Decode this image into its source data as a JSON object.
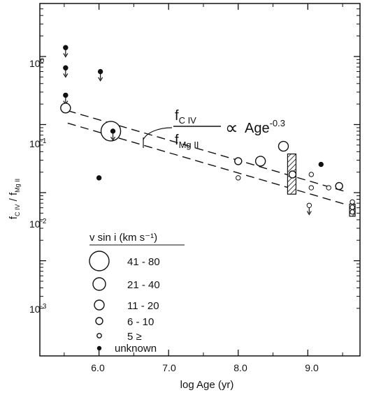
{
  "chart_data": {
    "type": "scatter",
    "title": "",
    "xlabel": "log Age (yr)",
    "ylabel": "fCIV / fMgII",
    "xlim": [
      5.15,
      9.75
    ],
    "ylim": [
      4e-05,
      6
    ],
    "yscale": "log",
    "x_ticks": [
      6.0,
      7.0,
      8.0,
      9.0
    ],
    "x_tick_labels": [
      "6.0",
      "7.0",
      "8.0",
      "9.0"
    ],
    "y_ticks": [
      0.001,
      0.01,
      0.1,
      1
    ],
    "y_tick_labels": [
      {
        "base": "10",
        "exp": "-3"
      },
      {
        "base": "10",
        "exp": "-2"
      },
      {
        "base": "10",
        "exp": "-1"
      },
      {
        "base": "10",
        "exp": "0"
      }
    ],
    "grid": false,
    "annotation": {
      "numerator": "f",
      "numerator_sub": "C IV",
      "denominator": "f",
      "denominator_sub": "Mg II",
      "relation": "∝",
      "rhs": "Age",
      "rhs_exp": "-0.3"
    },
    "relation_lines": [
      {
        "x": [
          5.55,
          9.55
        ],
        "y": [
          0.16,
          0.0103
        ]
      },
      {
        "x": [
          5.55,
          9.55
        ],
        "y": [
          0.105,
          0.0067
        ]
      }
    ],
    "legend": {
      "title": "v sin i (km s⁻¹)",
      "entries": [
        {
          "label": "41 - 80",
          "size": "xlarge"
        },
        {
          "label": "21 - 40",
          "size": "large"
        },
        {
          "label": "11 - 20",
          "size": "medium"
        },
        {
          "label": "6 - 10",
          "size": "small"
        },
        {
          "label": "5 ≥",
          "size": "tiny"
        },
        {
          "label": "unknown",
          "size": "filled"
        }
      ]
    },
    "points": [
      {
        "x": 5.52,
        "y": 1.35,
        "size": "filled",
        "upper_limit": true
      },
      {
        "x": 5.52,
        "y": 0.68,
        "size": "filled",
        "upper_limit": true
      },
      {
        "x": 5.52,
        "y": 0.27,
        "size": "filled",
        "upper_limit": true
      },
      {
        "x": 5.52,
        "y": 0.175,
        "size": "medium",
        "upper_limit": false
      },
      {
        "x": 6.02,
        "y": 0.6,
        "size": "filled",
        "upper_limit": true
      },
      {
        "x": 6.17,
        "y": 0.08,
        "size": "xlarge",
        "upper_limit": false
      },
      {
        "x": 6.2,
        "y": 0.08,
        "size": "filled",
        "upper_limit": true
      },
      {
        "x": 6.0,
        "y": 0.0165,
        "size": "filled",
        "upper_limit": false
      },
      {
        "x": 8.0,
        "y": 0.029,
        "size": "small",
        "upper_limit": false
      },
      {
        "x": 8.0,
        "y": 0.0165,
        "size": "tiny",
        "upper_limit": false
      },
      {
        "x": 8.32,
        "y": 0.029,
        "size": "medium",
        "upper_limit": false
      },
      {
        "x": 8.65,
        "y": 0.048,
        "size": "medium",
        "upper_limit": false
      },
      {
        "x": 8.78,
        "y": 0.0185,
        "size": "small",
        "upper_limit": false
      },
      {
        "x": 9.05,
        "y": 0.0185,
        "size": "tiny",
        "upper_limit": false
      },
      {
        "x": 9.05,
        "y": 0.0118,
        "size": "tiny",
        "upper_limit": false
      },
      {
        "x": 9.02,
        "y": 0.0065,
        "size": "tiny",
        "upper_limit": true
      },
      {
        "x": 9.19,
        "y": 0.026,
        "size": "filled",
        "upper_limit": false
      },
      {
        "x": 9.3,
        "y": 0.0118,
        "size": "tiny",
        "upper_limit": false
      },
      {
        "x": 9.45,
        "y": 0.0125,
        "size": "small",
        "upper_limit": false
      }
    ],
    "range_bars": [
      {
        "x": 8.77,
        "y_low": 0.0095,
        "y_high": 0.037
      },
      {
        "x": 9.64,
        "y_low": 0.0045,
        "y_high": 0.0068
      }
    ],
    "range_bar_points": [
      {
        "x": 9.64,
        "y": 0.0073,
        "size": "tiny"
      },
      {
        "x": 9.64,
        "y": 0.0061,
        "size": "tiny"
      },
      {
        "x": 9.64,
        "y": 0.0052,
        "size": "tiny"
      }
    ]
  }
}
